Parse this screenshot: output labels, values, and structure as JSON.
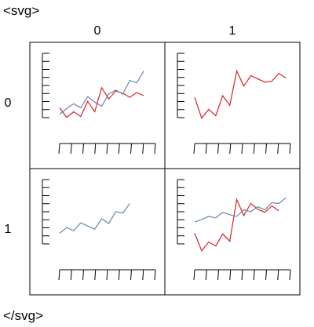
{
  "page": {
    "open_tag": "<svg>",
    "close_tag": "</svg>"
  },
  "colors": {
    "series_0": "#d9202a",
    "series_1": "#6a85a8"
  },
  "chart_data": {
    "type": "line",
    "layout": "facet-grid",
    "column_labels": [
      "0",
      "1"
    ],
    "row_labels": [
      "0",
      "1"
    ],
    "x": [
      0,
      1,
      2,
      3,
      4,
      5,
      6,
      7,
      8,
      9,
      10,
      11,
      12,
      13,
      14,
      15
    ],
    "ylim": [
      0,
      9
    ],
    "grid": false,
    "legend": "none",
    "panels": [
      {
        "row": "0",
        "col": "0",
        "series": [
          {
            "color_key": "series_0",
            "values": [
              2.8,
              1.6,
              2.3,
              1.7,
              3.6,
              2.3,
              5.3,
              3.9,
              4.9,
              4.6,
              4.1,
              4.7,
              4.3
            ]
          },
          {
            "color_key": "series_1",
            "values": [
              2.0,
              2.7,
              3.3,
              2.8,
              4.2,
              3.5,
              3.0,
              4.5,
              5.0,
              4.5,
              6.2,
              5.9,
              7.4
            ]
          }
        ]
      },
      {
        "row": "0",
        "col": "1",
        "series": [
          {
            "color_key": "series_0",
            "values": [
              4.1,
              1.5,
              2.6,
              1.8,
              4.3,
              3.1,
              7.4,
              5.5,
              6.8,
              6.4,
              6.0,
              6.1,
              7.1,
              6.5
            ]
          }
        ]
      },
      {
        "row": "1",
        "col": "0",
        "series": [
          {
            "color_key": "series_1",
            "values": [
              2.9,
              3.6,
              3.2,
              4.2,
              3.8,
              3.4,
              4.7,
              4.1,
              5.6,
              5.4,
              6.6
            ]
          }
        ]
      },
      {
        "row": "1",
        "col": "1",
        "series": [
          {
            "color_key": "series_0",
            "values": [
              2.9,
              0.7,
              1.8,
              1.3,
              2.8,
              1.9,
              7.1,
              5.1,
              6.6,
              5.9,
              5.5,
              6.3,
              5.7
            ]
          },
          {
            "color_key": "series_1",
            "values": [
              4.3,
              4.6,
              5.0,
              4.8,
              5.5,
              5.2,
              5.0,
              5.8,
              5.6,
              6.2,
              5.8,
              6.7,
              6.6,
              7.3
            ]
          }
        ]
      }
    ]
  }
}
